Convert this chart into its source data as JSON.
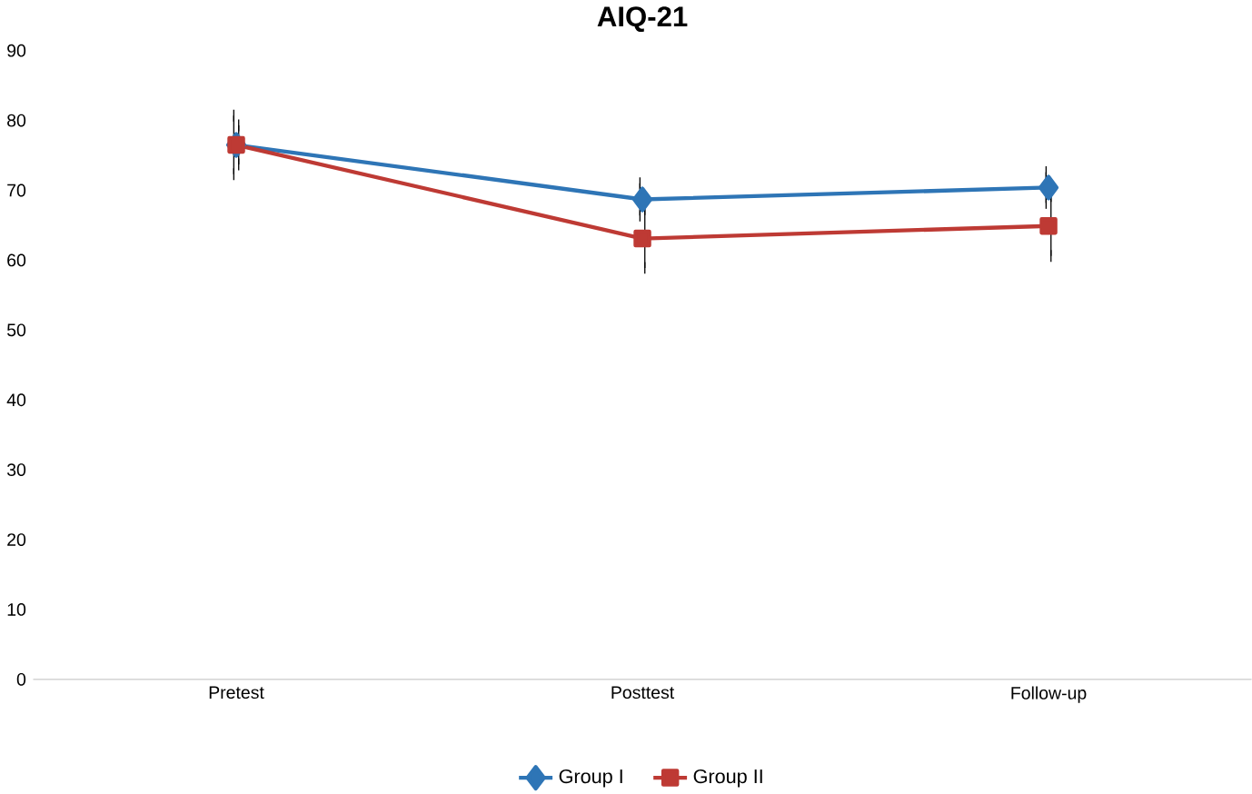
{
  "chart_data": {
    "type": "line",
    "title": "AIQ-21",
    "categories": [
      "Pretest",
      "Posttest",
      "Follow-up"
    ],
    "series": [
      {
        "name": "Group I",
        "color": "#2e75b6",
        "values": [
          76.5,
          68.7,
          70.4
        ],
        "errors": [
          4.2,
          2.3,
          2.2
        ],
        "marker": "diamond"
      },
      {
        "name": "Group II",
        "color": "#be3a34",
        "values": [
          76.5,
          63.1,
          64.9
        ],
        "errors": [
          2.8,
          4.2,
          4.3
        ],
        "marker": "square"
      }
    ],
    "ylim": [
      0,
      90
    ],
    "yticks": [
      0,
      10,
      20,
      30,
      40,
      50,
      60,
      70,
      80,
      90
    ],
    "grid": false,
    "legend": "bottom"
  }
}
